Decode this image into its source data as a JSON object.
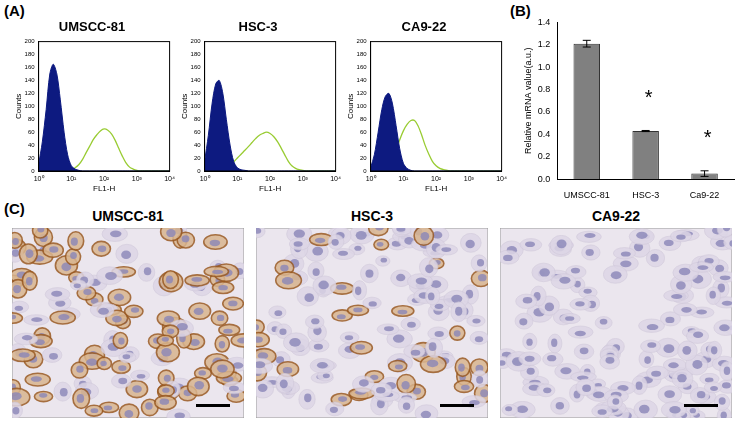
{
  "panel_labels": [
    "(A)",
    "(B)",
    "(C)"
  ],
  "chart_data": [
    {
      "type": "line",
      "title": "UMSCC-81",
      "xlabel": "FL1-H",
      "ylabel": "Counts",
      "log": "x",
      "xlim": [
        1,
        10000
      ],
      "xticks": [
        {
          "value": 1,
          "label": "10⁰"
        },
        {
          "value": 10,
          "label": "10¹"
        },
        {
          "value": 100,
          "label": "10²"
        },
        {
          "value": 1000,
          "label": "10³"
        },
        {
          "value": 10000,
          "label": "10⁴"
        }
      ],
      "ylim": [
        0,
        200
      ],
      "yticks": [
        0,
        20,
        40,
        60,
        80,
        100,
        120,
        140,
        160,
        180,
        200
      ],
      "x": [
        1,
        1.3,
        1.7,
        2.2,
        2.8,
        3.6,
        4.6,
        6,
        7.7,
        10,
        13,
        17,
        22,
        28,
        36,
        46,
        60,
        77,
        100,
        130,
        170,
        220,
        280,
        360,
        460,
        600,
        770,
        1000,
        1300,
        1700,
        2200,
        2800,
        3600,
        4600,
        6000,
        7700,
        10000
      ],
      "series": [
        {
          "type": "area",
          "color": "#0d1a80",
          "values": [
            10,
            45,
            95,
            150,
            165,
            150,
            110,
            60,
            25,
            8,
            3,
            1,
            0,
            0,
            0,
            0,
            0,
            0,
            0,
            0,
            0,
            0,
            0,
            0,
            0,
            0,
            0,
            0,
            0,
            0,
            0,
            0,
            0,
            0,
            0,
            0,
            0
          ]
        },
        {
          "type": "line",
          "color": "#99cc33",
          "values": [
            0,
            0,
            0,
            0,
            0,
            0,
            0,
            0,
            0,
            2,
            5,
            10,
            18,
            28,
            38,
            48,
            56,
            62,
            65,
            63,
            57,
            47,
            35,
            23,
            13,
            6,
            3,
            1,
            0,
            0,
            0,
            0,
            0,
            0,
            0,
            0,
            0
          ]
        }
      ]
    },
    {
      "type": "line",
      "title": "HSC-3",
      "xlabel": "FL1-H",
      "ylabel": "Counts",
      "log": "x",
      "xlim": [
        1,
        10000
      ],
      "xticks": [
        {
          "value": 1,
          "label": "10⁰"
        },
        {
          "value": 10,
          "label": "10¹"
        },
        {
          "value": 100,
          "label": "10²"
        },
        {
          "value": 1000,
          "label": "10³"
        },
        {
          "value": 10000,
          "label": "10⁴"
        }
      ],
      "ylim": [
        0,
        200
      ],
      "yticks": [
        0,
        20,
        40,
        60,
        80,
        100,
        120,
        140,
        160,
        180,
        200
      ],
      "x": [
        1,
        1.3,
        1.7,
        2.2,
        2.8,
        3.6,
        4.6,
        6,
        7.7,
        10,
        13,
        17,
        22,
        28,
        36,
        46,
        60,
        77,
        100,
        130,
        170,
        220,
        280,
        360,
        460,
        600,
        770,
        1000,
        1300,
        1700,
        2200,
        2800,
        3600,
        4600,
        6000,
        7700,
        10000
      ],
      "series": [
        {
          "type": "area",
          "color": "#0d1a80",
          "values": [
            15,
            55,
            105,
            135,
            140,
            120,
            80,
            40,
            15,
            5,
            2,
            1,
            0,
            0,
            0,
            0,
            0,
            0,
            0,
            0,
            0,
            0,
            0,
            0,
            0,
            0,
            0,
            0,
            0,
            0,
            0,
            0,
            0,
            0,
            0,
            0,
            0
          ]
        },
        {
          "type": "line",
          "color": "#99cc33",
          "values": [
            0,
            0,
            0,
            0,
            0,
            0,
            3,
            8,
            14,
            20,
            26,
            32,
            38,
            44,
            50,
            55,
            58,
            60,
            58,
            53,
            45,
            35,
            25,
            15,
            8,
            4,
            2,
            1,
            0,
            0,
            0,
            0,
            0,
            0,
            0,
            0,
            0
          ]
        }
      ]
    },
    {
      "type": "line",
      "title": "CA9-22",
      "xlabel": "FL1-H",
      "ylabel": "Counts",
      "log": "x",
      "xlim": [
        1,
        10000
      ],
      "xticks": [
        {
          "value": 1,
          "label": "10⁰"
        },
        {
          "value": 10,
          "label": "10¹"
        },
        {
          "value": 100,
          "label": "10²"
        },
        {
          "value": 1000,
          "label": "10³"
        },
        {
          "value": 10000,
          "label": "10⁴"
        }
      ],
      "ylim": [
        0,
        200
      ],
      "yticks": [
        0,
        20,
        40,
        60,
        80,
        100,
        120,
        140,
        160,
        180,
        200
      ],
      "x": [
        1,
        1.3,
        1.7,
        2.2,
        2.8,
        3.6,
        4.6,
        6,
        7.7,
        10,
        13,
        17,
        22,
        28,
        36,
        46,
        60,
        77,
        100,
        130,
        170,
        220,
        280,
        360,
        460,
        600,
        770,
        1000,
        1300,
        1700,
        2200,
        2800,
        3600,
        4600,
        6000,
        7700,
        10000
      ],
      "series": [
        {
          "type": "area",
          "color": "#0d1a80",
          "values": [
            5,
            25,
            60,
            95,
            115,
            120,
            105,
            70,
            35,
            12,
            4,
            1,
            0,
            0,
            0,
            0,
            0,
            0,
            0,
            0,
            0,
            0,
            0,
            0,
            0,
            0,
            0,
            0,
            0,
            0,
            0,
            0,
            0,
            0,
            0,
            0,
            0
          ]
        },
        {
          "type": "line",
          "color": "#99cc33",
          "values": [
            0,
            0,
            0,
            0,
            3,
            8,
            18,
            32,
            48,
            62,
            72,
            78,
            78,
            70,
            56,
            40,
            26,
            15,
            8,
            4,
            2,
            1,
            0,
            0,
            0,
            0,
            0,
            0,
            0,
            0,
            0,
            0,
            0,
            0,
            0,
            0,
            0
          ]
        }
      ]
    },
    {
      "type": "bar",
      "ylabel": "Relative mRNA value(a.u.)",
      "categories": [
        "UMSCC-81",
        "HSC-3",
        "Ca9-22"
      ],
      "values": [
        1.21,
        0.43,
        0.05
      ],
      "errors": [
        0.03,
        0.005,
        0.025
      ],
      "annotations": [
        null,
        "*",
        "*"
      ],
      "color": "#808080",
      "ylim": [
        0,
        1.4
      ],
      "yticks": [
        {
          "value": 0,
          "label": "0.0"
        },
        0.2,
        0.4,
        0.6,
        0.8,
        {
          "value": 1,
          "label": "1.0"
        },
        1.2,
        1.4
      ],
      "grid": false
    }
  ],
  "images": {
    "titles": [
      "UMSCC-81",
      "HSC-3",
      "CA9-22"
    ]
  }
}
